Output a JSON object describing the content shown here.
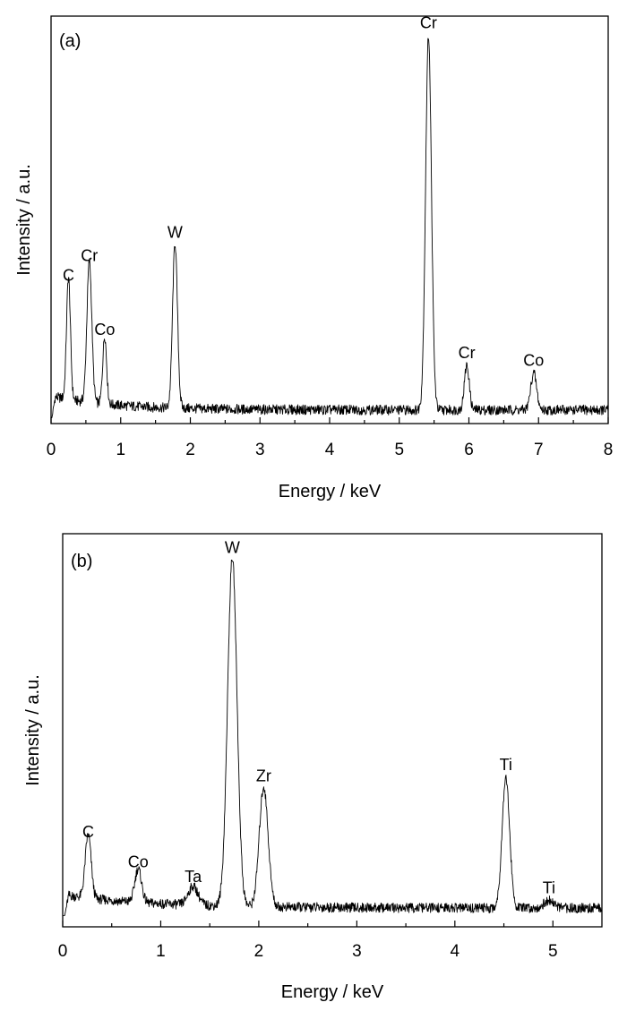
{
  "chart_data": [
    {
      "type": "line",
      "panel_label": "(a)",
      "xlabel": "Energy / keV",
      "ylabel": "Intensity / a.u.",
      "xlim": [
        0,
        8
      ],
      "ylim": [
        0,
        105
      ],
      "xticks": [
        0,
        1,
        2,
        3,
        4,
        5,
        6,
        7,
        8
      ],
      "y_ticks_shown": false,
      "baseline": 3.5,
      "series": [
        {
          "peaks": [
            {
              "label": "C",
              "x": 0.25,
              "y": 35
            },
            {
              "label": "Cr",
              "x": 0.55,
              "y": 40
            },
            {
              "label": "Co",
              "x": 0.77,
              "y": 21
            },
            {
              "label": "W",
              "x": 1.78,
              "y": 46
            },
            {
              "label": "Cr",
              "x": 5.42,
              "y": 100
            },
            {
              "label": "Cr",
              "x": 5.97,
              "y": 15
            },
            {
              "label": "Co",
              "x": 6.93,
              "y": 13
            }
          ]
        }
      ]
    },
    {
      "type": "line",
      "panel_label": "(b)",
      "xlabel": "Energy / keV",
      "ylabel": "Intensity / a.u.",
      "xlim": [
        0,
        5.5
      ],
      "ylim": [
        0,
        105
      ],
      "xticks": [
        0,
        1,
        2,
        3,
        4,
        5
      ],
      "y_ticks_shown": false,
      "baseline": 5,
      "series": [
        {
          "peaks": [
            {
              "label": "C",
              "x": 0.26,
              "y": 22
            },
            {
              "label": "Co",
              "x": 0.77,
              "y": 14
            },
            {
              "label": "Ta",
              "x": 1.33,
              "y": 10
            },
            {
              "label": "W",
              "x": 1.73,
              "y": 98
            },
            {
              "label": "Zr",
              "x": 2.05,
              "y": 37
            },
            {
              "label": "Ti",
              "x": 4.52,
              "y": 40
            },
            {
              "label": "Ti",
              "x": 4.96,
              "y": 7
            }
          ]
        }
      ]
    }
  ]
}
